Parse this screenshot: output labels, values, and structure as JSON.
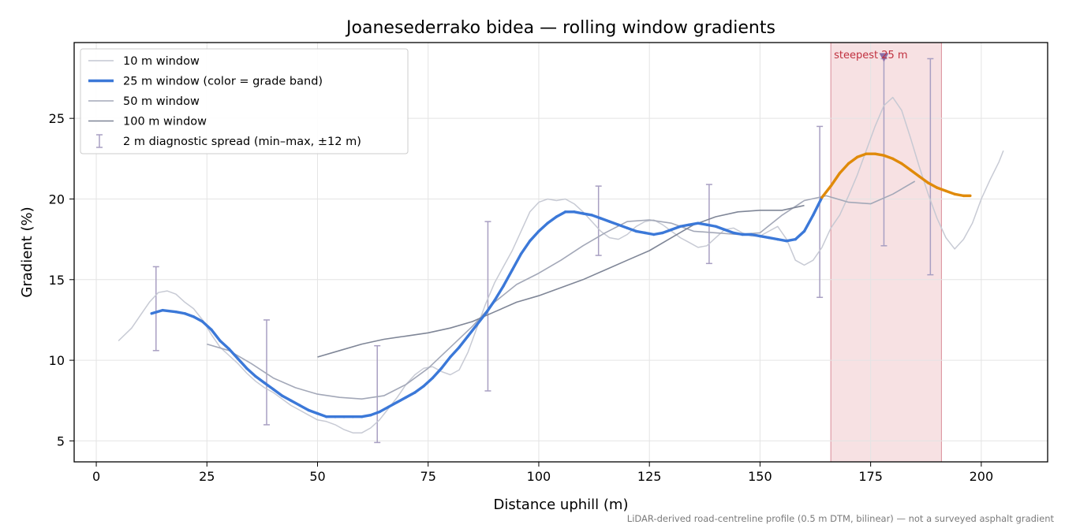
{
  "footnote": "LiDAR-derived road-centreline profile (0.5 m DTM, bilinear) — not a surveyed asphalt gradient",
  "chart_data": {
    "type": "line",
    "title": "Joanesederrako bidea — rolling window gradients",
    "xlabel": "Distance uphill (m)",
    "ylabel": "Gradient (%)",
    "xlim": [
      -5,
      215
    ],
    "ylim": [
      3.7,
      29.7
    ],
    "xticks": [
      0,
      25,
      50,
      75,
      100,
      125,
      150,
      175,
      200
    ],
    "yticks": [
      5,
      10,
      15,
      20,
      25
    ],
    "grid": true,
    "legend_position": "upper-left",
    "steep_band": {
      "x_start": 166,
      "x_end": 191,
      "label": "steepest 25 m",
      "marker_x": 178,
      "marker_y": 28.8,
      "color": "#e8a8b0"
    },
    "grade_band_colors": {
      "under_20": "#3b78d8",
      "20_plus": "#e08a0a"
    },
    "series": [
      {
        "name": "10 m window",
        "color": "#c4c7d2",
        "x": [
          5,
          8,
          10,
          12,
          14,
          16,
          18,
          20,
          22,
          24,
          26,
          28,
          30,
          32,
          34,
          36,
          38,
          40,
          42,
          44,
          46,
          48,
          50,
          52,
          54,
          56,
          58,
          60,
          62,
          64,
          66,
          68,
          70,
          72,
          74,
          76,
          78,
          80,
          82,
          84,
          86,
          88,
          90,
          92,
          94,
          96,
          98,
          100,
          102,
          104,
          106,
          108,
          110,
          112,
          114,
          116,
          118,
          120,
          122,
          124,
          126,
          128,
          130,
          132,
          134,
          136,
          138,
          140,
          142,
          144,
          146,
          148,
          150,
          152,
          154,
          156,
          158,
          160,
          162,
          164,
          166,
          168,
          170,
          172,
          174,
          176,
          178,
          180,
          182,
          184,
          186,
          188,
          190,
          192,
          194,
          196,
          198,
          200,
          202,
          204,
          205
        ],
        "y": [
          11.2,
          12.0,
          12.8,
          13.6,
          14.2,
          14.3,
          14.1,
          13.6,
          13.2,
          12.5,
          11.6,
          10.8,
          10.3,
          9.8,
          9.2,
          8.7,
          8.3,
          8.0,
          7.6,
          7.2,
          6.9,
          6.6,
          6.3,
          6.2,
          6.0,
          5.7,
          5.5,
          5.5,
          5.8,
          6.3,
          7.0,
          7.7,
          8.5,
          9.1,
          9.5,
          9.6,
          9.3,
          9.1,
          9.4,
          10.5,
          12.0,
          13.5,
          14.8,
          15.8,
          16.8,
          18.0,
          19.2,
          19.8,
          20.0,
          19.9,
          20.0,
          19.7,
          19.2,
          18.6,
          18.0,
          17.6,
          17.5,
          17.8,
          18.3,
          18.6,
          18.7,
          18.4,
          18.0,
          17.6,
          17.3,
          17.0,
          17.1,
          17.6,
          18.1,
          18.2,
          17.9,
          17.7,
          17.7,
          18.0,
          18.3,
          17.5,
          16.2,
          15.9,
          16.2,
          17.0,
          18.2,
          19.0,
          20.2,
          21.5,
          23.0,
          24.5,
          25.8,
          26.3,
          25.5,
          23.8,
          22.0,
          20.3,
          18.8,
          17.6,
          16.9,
          17.5,
          18.5,
          20.0,
          21.2,
          22.3,
          23.0
        ]
      },
      {
        "name": "25 m window (color = grade band)",
        "color": "#3b78d8",
        "x": [
          12.5,
          15,
          18,
          20,
          22,
          24,
          26,
          28,
          30,
          32,
          34,
          36,
          38,
          40,
          42,
          44,
          46,
          48,
          50,
          52,
          54,
          56,
          58,
          60,
          62,
          64,
          66,
          68,
          70,
          72,
          74,
          76,
          78,
          80,
          82,
          84,
          86,
          88,
          90,
          92,
          94,
          96,
          98,
          100,
          102,
          104,
          106,
          108,
          110,
          112,
          114,
          116,
          118,
          120,
          122,
          124,
          126,
          128,
          130,
          132,
          134,
          136,
          138,
          140,
          142,
          144,
          146,
          148,
          150,
          152,
          154,
          156,
          158,
          160,
          162,
          164,
          166,
          168,
          170,
          172,
          174,
          176,
          178,
          180,
          182,
          184,
          186,
          188,
          190,
          192,
          194,
          196,
          197.5
        ],
        "y": [
          12.9,
          13.1,
          13.0,
          12.9,
          12.7,
          12.4,
          11.9,
          11.2,
          10.7,
          10.1,
          9.5,
          9.0,
          8.6,
          8.2,
          7.8,
          7.5,
          7.2,
          6.9,
          6.7,
          6.5,
          6.5,
          6.5,
          6.5,
          6.5,
          6.6,
          6.8,
          7.1,
          7.4,
          7.7,
          8.0,
          8.4,
          8.9,
          9.5,
          10.2,
          10.8,
          11.5,
          12.2,
          12.9,
          13.7,
          14.6,
          15.6,
          16.6,
          17.4,
          18.0,
          18.5,
          18.9,
          19.2,
          19.2,
          19.1,
          19.0,
          18.8,
          18.6,
          18.4,
          18.2,
          18.0,
          17.9,
          17.8,
          17.9,
          18.1,
          18.3,
          18.4,
          18.5,
          18.4,
          18.3,
          18.1,
          17.9,
          17.8,
          17.8,
          17.7,
          17.6,
          17.5,
          17.4,
          17.5,
          18.0,
          19.0,
          20.1,
          20.8,
          21.6,
          22.2,
          22.6,
          22.8,
          22.8,
          22.7,
          22.5,
          22.2,
          21.8,
          21.4,
          21.0,
          20.7,
          20.5,
          20.3,
          20.2,
          20.2
        ]
      },
      {
        "name": "50 m window",
        "color": "#a3a8b8",
        "x": [
          25,
          30,
          35,
          40,
          45,
          50,
          55,
          60,
          65,
          70,
          75,
          80,
          85,
          90,
          95,
          100,
          105,
          110,
          115,
          120,
          125,
          130,
          135,
          140,
          145,
          150,
          155,
          160,
          165,
          170,
          175,
          180,
          185
        ],
        "y": [
          11.0,
          10.6,
          9.8,
          8.9,
          8.3,
          7.9,
          7.7,
          7.6,
          7.8,
          8.5,
          9.5,
          10.8,
          12.1,
          13.6,
          14.7,
          15.4,
          16.2,
          17.1,
          17.9,
          18.6,
          18.7,
          18.5,
          18.0,
          17.9,
          17.8,
          17.9,
          19.0,
          19.9,
          20.2,
          19.8,
          19.7,
          20.3,
          21.1
        ]
      },
      {
        "name": "100 m window",
        "color": "#7f8697",
        "x": [
          50,
          55,
          60,
          65,
          70,
          75,
          80,
          85,
          90,
          95,
          100,
          105,
          110,
          115,
          120,
          125,
          130,
          135,
          140,
          145,
          150,
          155,
          160
        ],
        "y": [
          10.2,
          10.6,
          11.0,
          11.3,
          11.5,
          11.7,
          12.0,
          12.4,
          13.0,
          13.6,
          14.0,
          14.5,
          15.0,
          15.6,
          16.2,
          16.8,
          17.6,
          18.4,
          18.9,
          19.2,
          19.3,
          19.3,
          19.6
        ]
      }
    ],
    "error_bars": {
      "name": "2 m diagnostic spread (min–max, ±12 m)",
      "color": "#a89fc2",
      "items": [
        {
          "x": 13.5,
          "min": 10.6,
          "max": 15.8
        },
        {
          "x": 38.5,
          "min": 6.0,
          "max": 12.5
        },
        {
          "x": 63.5,
          "min": 4.9,
          "max": 10.9
        },
        {
          "x": 88.5,
          "min": 8.1,
          "max": 18.6
        },
        {
          "x": 113.5,
          "min": 16.5,
          "max": 20.8
        },
        {
          "x": 138.5,
          "min": 16.0,
          "max": 20.9
        },
        {
          "x": 163.5,
          "min": 13.9,
          "max": 24.5
        },
        {
          "x": 178.0,
          "min": 17.1,
          "max": 28.7
        },
        {
          "x": 188.5,
          "min": 15.3,
          "max": 28.7
        }
      ]
    }
  }
}
